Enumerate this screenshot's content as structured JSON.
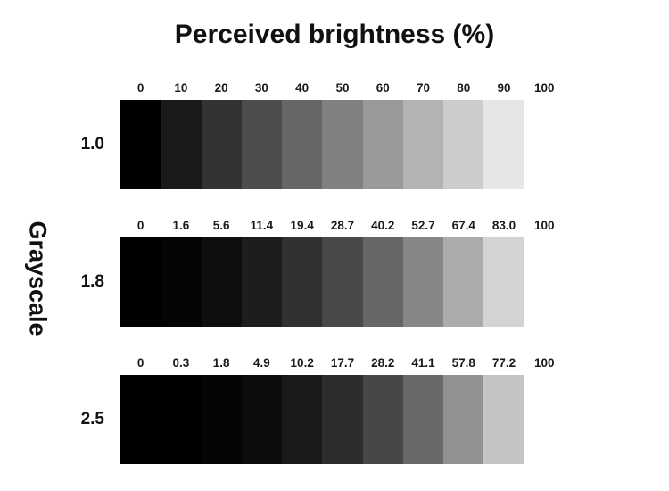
{
  "title": "Perceived brightness (%)",
  "y_axis_label": "Grayscale",
  "chart_data": {
    "type": "heatmap",
    "title": "Perceived brightness (%)",
    "xlabel": "Perceived brightness (%)",
    "ylabel": "Grayscale",
    "input_levels_percent": [
      0,
      10,
      20,
      30,
      40,
      50,
      60,
      70,
      80,
      90,
      100
    ],
    "legend": "off",
    "grid": "off",
    "rows": [
      {
        "gamma": "1.0",
        "tick_labels": [
          "0",
          "10",
          "20",
          "30",
          "40",
          "50",
          "60",
          "70",
          "80",
          "90",
          "100"
        ],
        "perceived_brightness": [
          0,
          10,
          20,
          30,
          40,
          50,
          60,
          70,
          80,
          90,
          100
        ],
        "segment_colors": [
          "#000000",
          "#1a1a1a",
          "#333333",
          "#4d4d4d",
          "#666666",
          "#808080",
          "#999999",
          "#b3b3b3",
          "#cccccc",
          "#e6e6e6",
          "#ffffff"
        ]
      },
      {
        "gamma": "1.8",
        "tick_labels": [
          "0",
          "1.6",
          "5.6",
          "11.4",
          "19.4",
          "28.7",
          "40.2",
          "52.7",
          "67.4",
          "83.0",
          "100"
        ],
        "perceived_brightness": [
          0,
          1.6,
          5.6,
          11.4,
          19.4,
          28.7,
          40.2,
          52.7,
          67.4,
          83.0,
          100
        ],
        "segment_colors": [
          "#000000",
          "#040404",
          "#0e0e0e",
          "#1d1d1d",
          "#313131",
          "#494949",
          "#666666",
          "#868686",
          "#ababab",
          "#d3d3d3",
          "#ffffff"
        ]
      },
      {
        "gamma": "2.5",
        "tick_labels": [
          "0",
          "0.3",
          "1.8",
          "4.9",
          "10.2",
          "17.7",
          "28.2",
          "41.1",
          "57.8",
          "77.2",
          "100"
        ],
        "perceived_brightness": [
          0,
          0.3,
          1.8,
          4.9,
          10.2,
          17.7,
          28.2,
          41.1,
          57.8,
          77.2,
          100
        ],
        "segment_colors": [
          "#000000",
          "#010101",
          "#050505",
          "#0d0d0d",
          "#1a1a1a",
          "#2d2d2d",
          "#474747",
          "#696969",
          "#929292",
          "#c4c4c4",
          "#ffffff"
        ]
      }
    ]
  }
}
